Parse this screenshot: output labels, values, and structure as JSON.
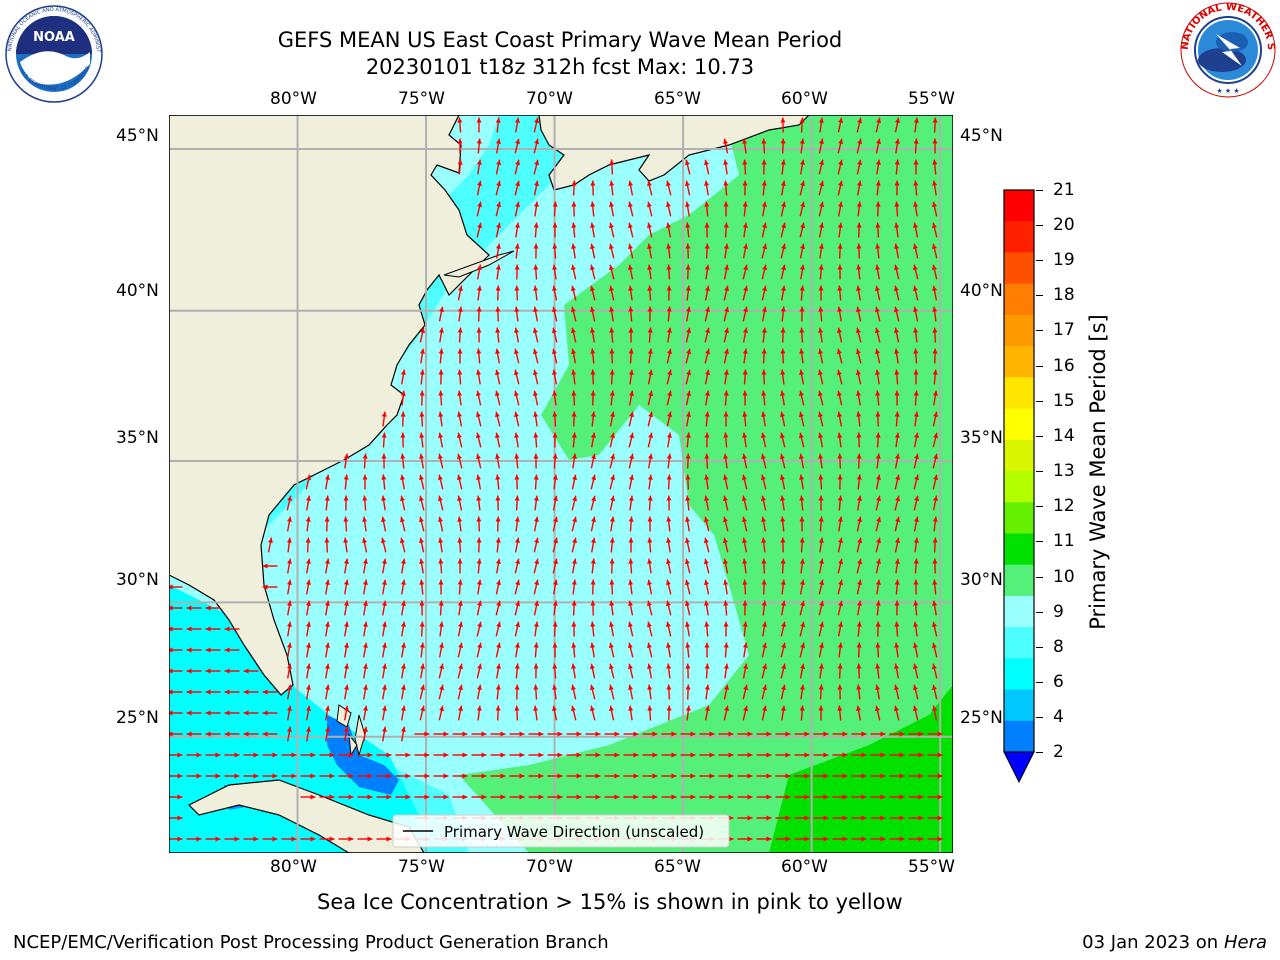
{
  "title": {
    "line1": "GEFS MEAN US East Coast Primary Wave Mean Period",
    "line2": "20230101 t18z 312h fcst   Max: 10.73"
  },
  "logos": {
    "left": "NOAA",
    "left_ring": "NATIONAL OCEANIC AND ATMOSPHERIC ADMINISTRATION",
    "left_ring_bottom": "U.S. DEPARTMENT OF COMMERCE",
    "right_ring": "NATIONAL WEATHER SERVICE"
  },
  "map": {
    "lon_ticks": [
      "80°W",
      "75°W",
      "70°W",
      "65°W",
      "60°W",
      "55°W"
    ],
    "lat_ticks": [
      "45°N",
      "40°N",
      "35°N",
      "30°N",
      "25°N"
    ],
    "lon_range": [
      -85,
      -54.5
    ],
    "lat_range": [
      20.5,
      46
    ],
    "legend": "Primary Wave Direction (unscaled)",
    "colors": {
      "land": "#efefdc",
      "coast": "#000000",
      "grid": "#b0b0b0",
      "arrow": "#ff0000"
    }
  },
  "colorbar": {
    "label": "Primary Wave Mean Period [s]",
    "ticks": [
      "21",
      "20",
      "19",
      "18",
      "17",
      "16",
      "15",
      "14",
      "13",
      "12",
      "11",
      "10",
      "9",
      "8",
      "6",
      "4",
      "2"
    ],
    "colors": [
      "#ff0000",
      "#ff2000",
      "#ff5000",
      "#ff7d00",
      "#ff9900",
      "#ffb400",
      "#ffe600",
      "#ffff00",
      "#d9f500",
      "#b3ff00",
      "#66f000",
      "#00e100",
      "#55f07a",
      "#99ffff",
      "#4dffff",
      "#00ffff",
      "#00c8ff",
      "#007fff"
    ],
    "extend_color": "#0000ff"
  },
  "caption": "Sea Ice Concentration > 15% is shown in pink to yellow",
  "footer": {
    "left": "NCEP/EMC/Verification Post Processing Product Generation Branch",
    "date": "03 Jan 2023 on ",
    "machine": "Hera"
  }
}
